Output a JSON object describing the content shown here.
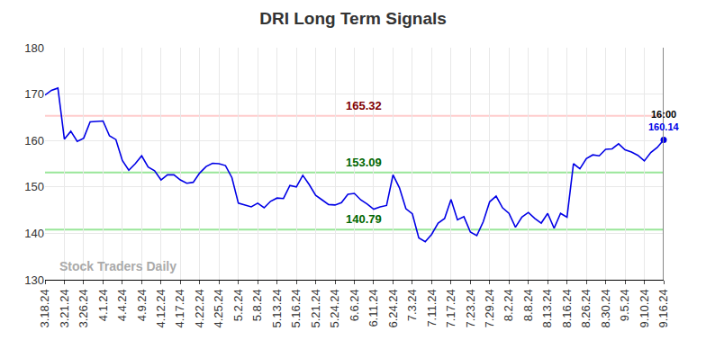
{
  "chart_data": {
    "type": "line",
    "title": "DRI Long Term Signals",
    "watermark": "Stock Traders Daily",
    "last_label": "16:00",
    "color": "#0000e6",
    "grid": true,
    "ylim": [
      130,
      180
    ],
    "yticks": [
      130,
      140,
      150,
      160,
      170,
      180
    ],
    "levels": [
      {
        "value": 165.32,
        "color": "#ffcccc",
        "label_color": "#800000"
      },
      {
        "value": 153.09,
        "color": "#99e699",
        "label_color": "#006600"
      },
      {
        "value": 140.79,
        "color": "#99e699",
        "label_color": "#006600"
      }
    ],
    "categories": [
      "3.18.24",
      null,
      null,
      "3.21.24",
      null,
      null,
      "3.26.24",
      null,
      null,
      "4.1.24",
      null,
      null,
      "4.4.24",
      null,
      null,
      "4.9.24",
      null,
      null,
      "4.12.24",
      null,
      null,
      "4.17.24",
      null,
      null,
      "4.22.24",
      null,
      null,
      "4.25.24",
      null,
      null,
      "5.2.24",
      null,
      null,
      "5.8.24",
      null,
      null,
      "5.13.24",
      null,
      null,
      "5.16.24",
      null,
      null,
      "5.21.24",
      null,
      null,
      "5.24.24",
      null,
      null,
      "6.6.24",
      null,
      null,
      "6.11.24",
      null,
      null,
      "6.24.24",
      null,
      null,
      "7.3.24",
      null,
      null,
      "7.11.24",
      null,
      null,
      "7.17.24",
      null,
      null,
      "7.23.24",
      null,
      null,
      "7.29.24",
      null,
      null,
      "8.2.24",
      null,
      null,
      "8.8.24",
      null,
      null,
      "8.13.24",
      null,
      null,
      "8.16.24",
      null,
      null,
      "8.26.24",
      null,
      null,
      "8.30.24",
      null,
      null,
      "9.5.24",
      null,
      null,
      "9.10.24",
      null,
      null,
      "9.16.24"
    ],
    "values": [
      169.8,
      170.8,
      171.3,
      160.3,
      162.0,
      159.8,
      160.5,
      164.0,
      164.1,
      164.2,
      161.0,
      160.2,
      155.7,
      153.6,
      155.0,
      156.7,
      154.3,
      153.5,
      151.5,
      152.6,
      152.6,
      151.5,
      150.8,
      151.0,
      153.0,
      154.4,
      155.1,
      155.0,
      154.6,
      152.0,
      146.5,
      146.1,
      145.7,
      146.5,
      145.5,
      146.9,
      147.6,
      147.5,
      150.3,
      150.0,
      152.5,
      150.5,
      148.2,
      147.2,
      146.2,
      146.1,
      146.6,
      148.4,
      148.6,
      147.2,
      146.3,
      145.2,
      145.7,
      146.0,
      152.6,
      149.8,
      145.3,
      144.2,
      139.0,
      138.2,
      139.8,
      142.2,
      143.2,
      147.3,
      142.9,
      143.6,
      140.3,
      139.5,
      142.5,
      146.8,
      148.0,
      145.5,
      144.3,
      141.3,
      143.5,
      144.5,
      143.2,
      142.2,
      144.3,
      141.1,
      144.3,
      143.5,
      155.0,
      153.9,
      156.1,
      156.9,
      156.7,
      158.1,
      158.2,
      159.3,
      158.0,
      157.5,
      156.8,
      155.6,
      157.4,
      158.5,
      160.14
    ]
  }
}
